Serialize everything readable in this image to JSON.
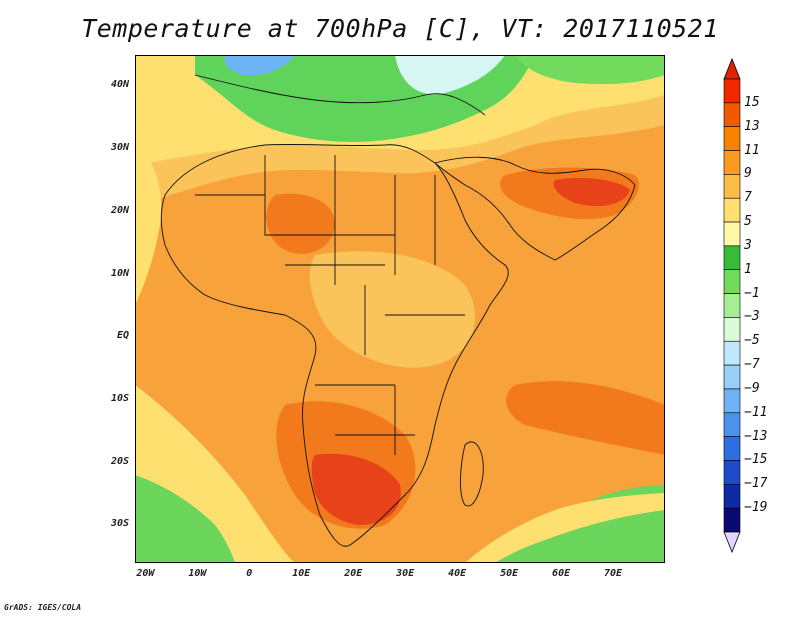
{
  "title": "Temperature at 700hPa [C], VT: 2017110521",
  "credit": "GrADS: IGES/COLA",
  "map": {
    "lon_range": [
      -22,
      80
    ],
    "lat_range": [
      -36,
      45
    ],
    "lat_ticks": [
      {
        "value": 40,
        "label": "40N"
      },
      {
        "value": 30,
        "label": "30N"
      },
      {
        "value": 20,
        "label": "20N"
      },
      {
        "value": 10,
        "label": "10N"
      },
      {
        "value": 0,
        "label": "EQ"
      },
      {
        "value": -10,
        "label": "10S"
      },
      {
        "value": -20,
        "label": "20S"
      },
      {
        "value": -30,
        "label": "30S"
      }
    ],
    "lon_ticks": [
      {
        "value": -20,
        "label": "20W"
      },
      {
        "value": -10,
        "label": "10W"
      },
      {
        "value": 0,
        "label": "0"
      },
      {
        "value": 10,
        "label": "10E"
      },
      {
        "value": 20,
        "label": "20E"
      },
      {
        "value": 30,
        "label": "30E"
      },
      {
        "value": 40,
        "label": "40E"
      },
      {
        "value": 50,
        "label": "50E"
      },
      {
        "value": 60,
        "label": "60E"
      },
      {
        "value": 70,
        "label": "70E"
      }
    ]
  },
  "colorbar": {
    "levels": [
      15,
      13,
      11,
      9,
      7,
      5,
      3,
      1,
      -1,
      -3,
      -5,
      -7,
      -9,
      -11,
      -13,
      -15,
      -17,
      -19
    ],
    "labels": [
      "15",
      "13",
      "11",
      "9",
      "7",
      "5",
      "3",
      "1",
      "−1",
      "−3",
      "−5",
      "−7",
      "−9",
      "−11",
      "−13",
      "−15",
      "−17",
      "−19"
    ],
    "colors": [
      "#f02800",
      "#f05a00",
      "#f58200",
      "#fa9a20",
      "#fbbd48",
      "#fde070",
      "#fff8a8",
      "#39bb3a",
      "#72db5e",
      "#a5ee94",
      "#daf9d8",
      "#bfe8fb",
      "#98d0f9",
      "#6eb3f5",
      "#4a93ec",
      "#2e6ee0",
      "#1c4cc8",
      "#0e2ba6",
      "#0a0a72"
    ],
    "top_arrow_color": "#e12200",
    "bottom_arrow_color": "#e0d6ff"
  },
  "field_colors": {
    "ocean_sw": "#ffe26a",
    "med_green": "#5fd35a",
    "alps_blue": "#6eb3f5",
    "anatolia_cyan": "#d6f6f4",
    "sahara": "#fbc45a",
    "warm_orange": "#f7a23a",
    "hot": "#f27a1c",
    "hottest": "#e8421a",
    "south_green": "#6bd55c"
  }
}
